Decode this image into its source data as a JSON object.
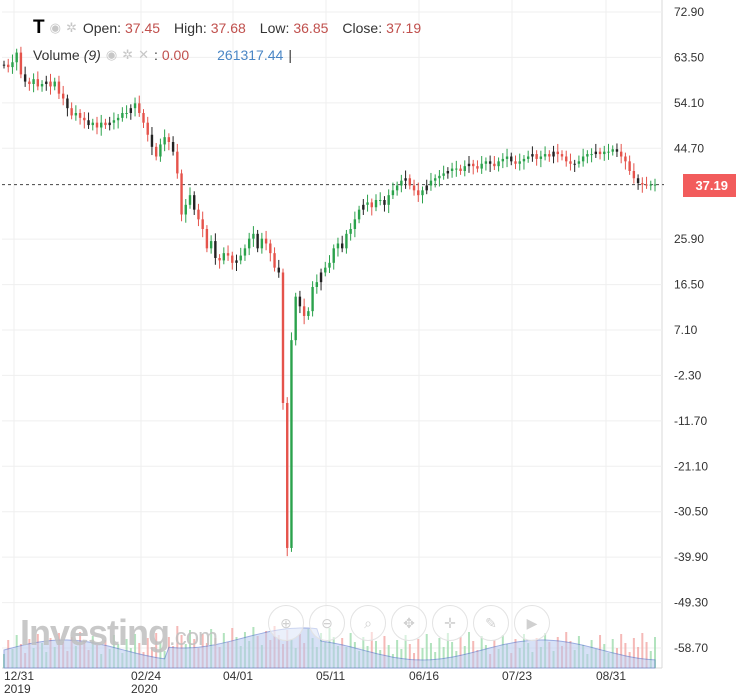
{
  "legend": {
    "symbol": "T",
    "open_label": "Open:",
    "open": "37.45",
    "high_label": "High:",
    "high": "37.68",
    "low_label": "Low:",
    "low": "36.85",
    "close_label": "Close:",
    "close": "37.19",
    "volume_label": "Volume",
    "volume_period": "(9)",
    "volume_sep": ":",
    "volume_value": "0.00",
    "volume_ma": "261317.44",
    "cursor": "|"
  },
  "price_tag": "37.19",
  "watermark": {
    "brand": "Investing",
    "suffix": ".com"
  },
  "toolbar": [
    "zoom-in-icon",
    "zoom-out-icon",
    "search-icon",
    "pan-icon",
    "crosshair-icon",
    "draw-icon",
    "play-icon"
  ],
  "colors": {
    "up": "#2ba24c",
    "down": "#e5534b",
    "neutral": "#222222",
    "volume_area": "#b8c9ef",
    "volume_line": "#4a6ac9",
    "price_tag": "#f25c5c"
  },
  "chart_data": {
    "type": "candlestick",
    "title": "",
    "xlabel": "",
    "ylabel": "",
    "x_ticks": [
      {
        "label": "12/31",
        "sub": "2019"
      },
      {
        "label": "02/24",
        "sub": "2020"
      },
      {
        "label": "04/01",
        "sub": ""
      },
      {
        "label": "05/11",
        "sub": ""
      },
      {
        "label": "06/16",
        "sub": ""
      },
      {
        "label": "07/23",
        "sub": ""
      },
      {
        "label": "08/31",
        "sub": ""
      }
    ],
    "y_ticks": [
      "72.90",
      "63.50",
      "54.10",
      "44.70",
      "25.90",
      "16.50",
      "7.10",
      "-2.30",
      "-11.70",
      "-21.10",
      "-30.50",
      "-39.90",
      "-49.30",
      "-58.70"
    ],
    "ylim": [
      -60,
      75
    ],
    "last_close": 37.19,
    "grid": true,
    "closes": [
      62,
      61.5,
      62.5,
      64.5,
      60,
      58.5,
      58,
      59,
      57.5,
      58,
      58.5,
      57.5,
      58.5,
      56,
      55,
      53,
      51.5,
      52,
      51,
      50.5,
      49.5,
      50,
      49,
      50,
      49.5,
      50,
      50.5,
      51,
      52,
      52,
      53,
      54,
      52,
      50,
      47.5,
      45,
      43,
      45.5,
      47,
      46,
      44,
      39.5,
      31,
      33,
      35,
      32,
      30,
      28,
      24,
      25.5,
      22,
      21.5,
      23,
      22.5,
      21,
      21.5,
      22.5,
      24,
      26,
      27,
      24,
      26,
      25,
      23,
      20,
      19,
      -8,
      -38,
      5,
      14,
      12,
      10,
      11,
      16,
      17,
      19,
      20,
      21,
      24,
      25,
      24,
      27,
      28,
      30,
      32,
      33,
      33.5,
      32.5,
      34,
      34,
      33,
      35,
      36,
      37,
      38,
      38.5,
      37,
      36,
      35,
      36,
      37,
      38,
      38.5,
      39,
      39.5,
      40,
      40.5,
      40.5,
      40,
      41,
      41.5,
      41,
      40.5,
      41.5,
      42,
      41.5,
      41,
      42,
      42.5,
      43,
      42,
      41.5,
      42,
      42.5,
      43,
      43.5,
      42.5,
      43,
      43.5,
      43,
      44,
      43.5,
      43,
      42,
      41.5,
      41.5,
      42,
      43,
      43.5,
      43.5,
      44,
      43.5,
      44,
      44,
      44.5,
      44,
      43,
      42,
      40,
      38.5,
      37.5,
      37.2,
      37.1,
      37.19,
      37.19
    ]
  }
}
